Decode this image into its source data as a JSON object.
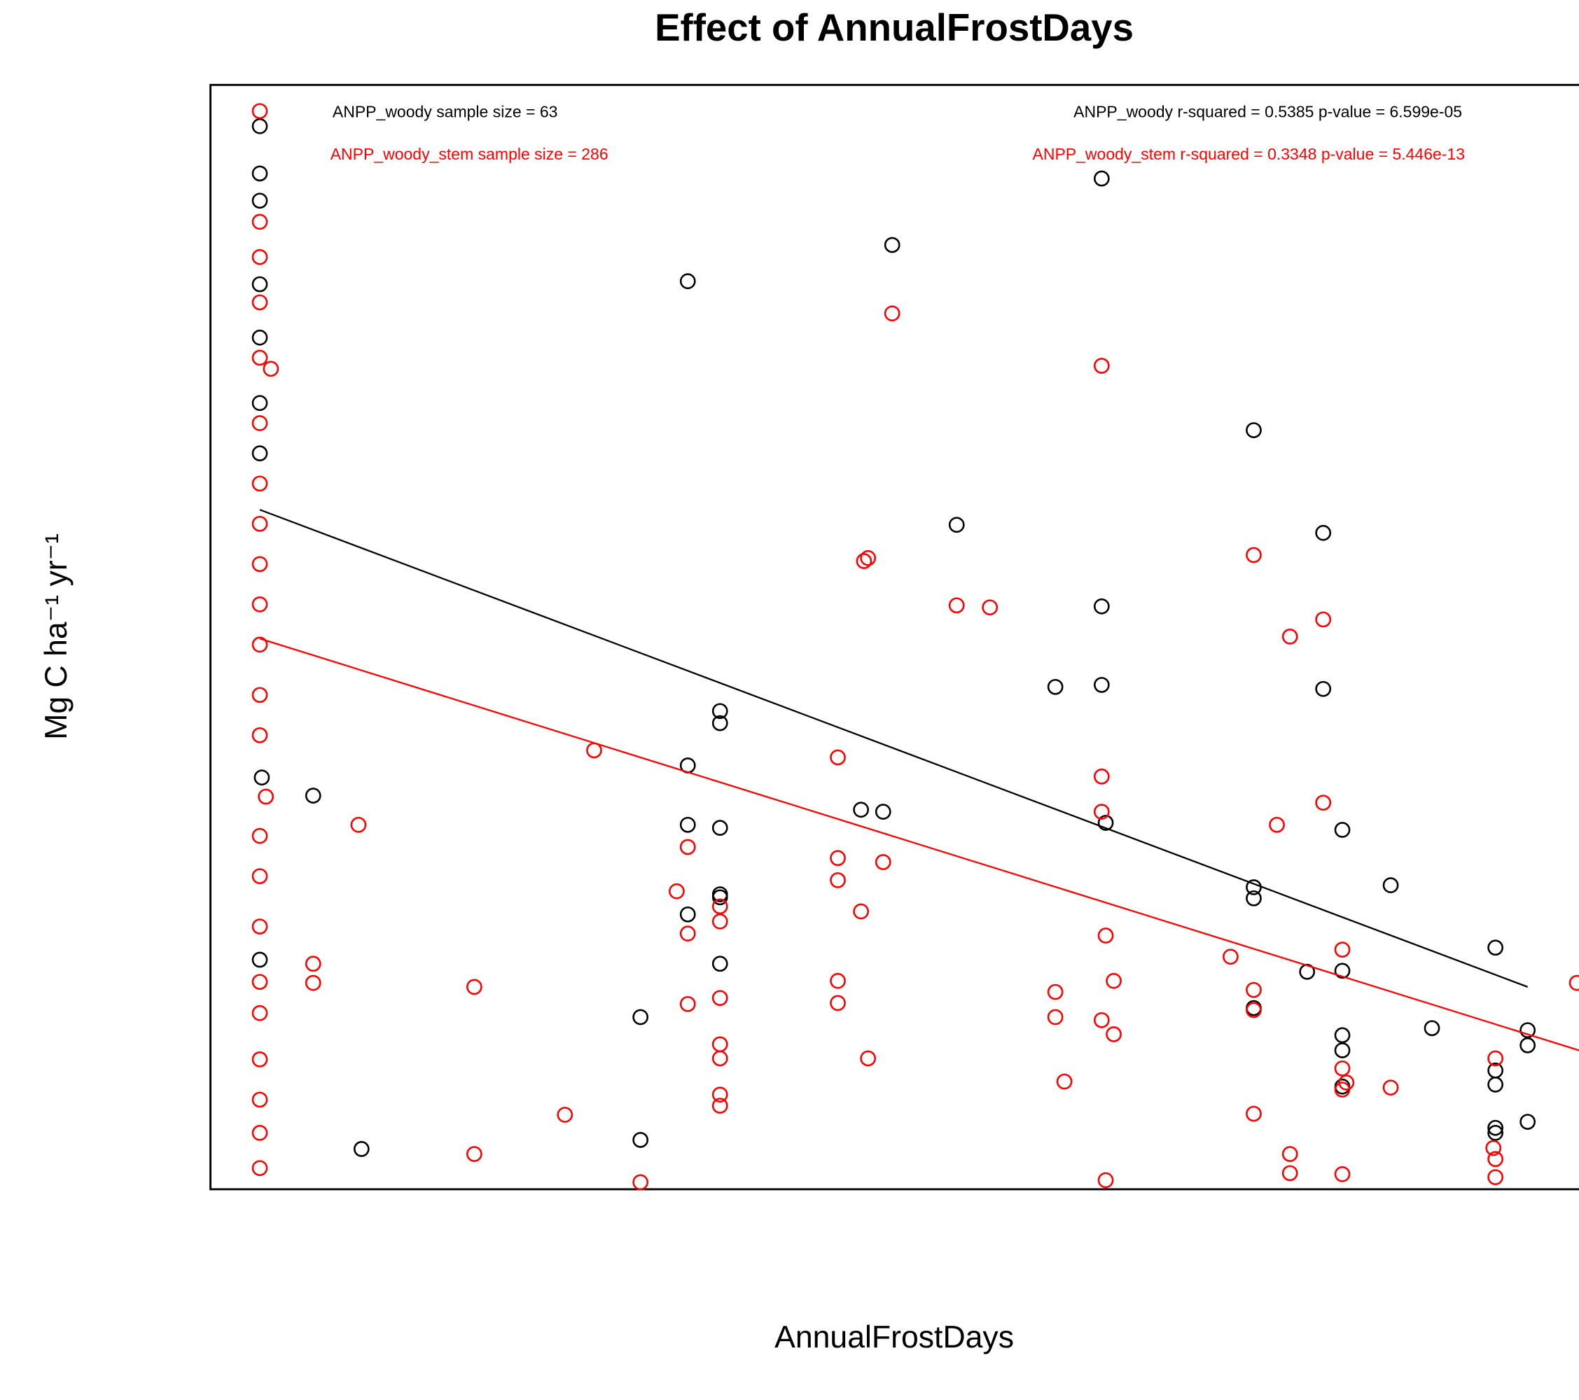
{
  "chart_data": {
    "type": "scatter",
    "title": "Effect of AnnualFrostDays",
    "x_label": "AnnualFrostDays",
    "y_label": "Mg C ha⁻¹ yr⁻¹",
    "xlim": [
      0,
      1359
    ],
    "ylim": [
      0,
      1097
    ],
    "annotations": [
      {
        "text": "ANPP_woody sample size = 63",
        "color": "#000000"
      },
      {
        "text": "ANPP_woody r-squared =  0.5385 p-value =  6.599e-05",
        "color": "#000000"
      },
      {
        "text": "ANPP_woody_stem sample size = 286",
        "color": "#ff0000"
      },
      {
        "text": "ANPP_woody_stem r-squared =  0.3348 p-value =  5.446e-13",
        "color": "#ff0000"
      }
    ],
    "series": [
      {
        "name": "ANPP_woody",
        "color": "#000000",
        "x": [
          49,
          49,
          49,
          49,
          49,
          49,
          49,
          51,
          49,
          102,
          150,
          427,
          427,
          474,
          474,
          474,
          474,
          506,
          506,
          506,
          506,
          506,
          506,
          646,
          668,
          677,
          741,
          839,
          885,
          885,
          885,
          889,
          1036,
          1036,
          1036,
          1036,
          1089,
          1105,
          1105,
          1124,
          1124,
          1124,
          1124,
          1124,
          1172,
          1213,
          1276,
          1276,
          1276,
          1276,
          1276,
          1308,
          1308,
          1308
        ],
        "values": [
          1056,
          1009,
          982,
          899,
          846,
          781,
          731,
          409,
          228,
          391,
          40,
          171,
          49,
          902,
          421,
          362,
          273,
          475,
          463,
          359,
          293,
          290,
          224,
          377,
          375,
          938,
          660,
          499,
          1004,
          579,
          501,
          364,
          754,
          300,
          289,
          180,
          216,
          652,
          497,
          357,
          217,
          153,
          138,
          102,
          302,
          160,
          240,
          118,
          104,
          61,
          56,
          158,
          143,
          67
        ],
        "trend_x": [
          49,
          1308
        ],
        "trend_y": [
          675,
          201
        ]
      },
      {
        "name": "ANPP_woody_stem",
        "color": "#ff0000",
        "x": [
          49,
          49,
          49,
          49,
          49,
          60,
          49,
          49,
          49,
          49,
          49,
          49,
          49,
          49,
          55,
          49,
          49,
          49,
          49,
          49,
          49,
          49,
          49,
          49,
          102,
          102,
          147,
          262,
          262,
          352,
          381,
          427,
          463,
          474,
          474,
          474,
          506,
          506,
          506,
          506,
          506,
          506,
          506,
          623,
          623,
          623,
          623,
          623,
          646,
          649,
          653,
          653,
          668,
          677,
          741,
          774,
          839,
          839,
          848,
          885,
          885,
          885,
          885,
          889,
          889,
          897,
          897,
          1013,
          1036,
          1036,
          1036,
          1036,
          1059,
          1072,
          1072,
          1072,
          1105,
          1105,
          1124,
          1124,
          1128,
          1124,
          1124,
          1172,
          1276,
          1274,
          1276,
          1276,
          1357
        ],
        "values": [
          1071,
          961,
          926,
          881,
          826,
          815,
          761,
          701,
          661,
          621,
          581,
          541,
          491,
          451,
          390,
          351,
          311,
          261,
          206,
          175,
          129,
          89,
          56,
          21,
          224,
          205,
          362,
          201,
          35,
          74,
          436,
          7,
          296,
          340,
          254,
          184,
          281,
          266,
          190,
          144,
          130,
          94,
          83,
          429,
          329,
          307,
          207,
          185,
          276,
          624,
          627,
          130,
          325,
          870,
          580,
          578,
          196,
          171,
          107,
          818,
          410,
          375,
          168,
          252,
          9,
          207,
          154,
          231,
          630,
          198,
          178,
          75,
          362,
          549,
          35,
          16,
          566,
          384,
          238,
          120,
          106,
          99,
          15,
          101,
          130,
          41,
          30,
          12,
          205
        ],
        "trend_x": [
          49,
          1359
        ],
        "trend_y": [
          547,
          138
        ]
      }
    ]
  }
}
